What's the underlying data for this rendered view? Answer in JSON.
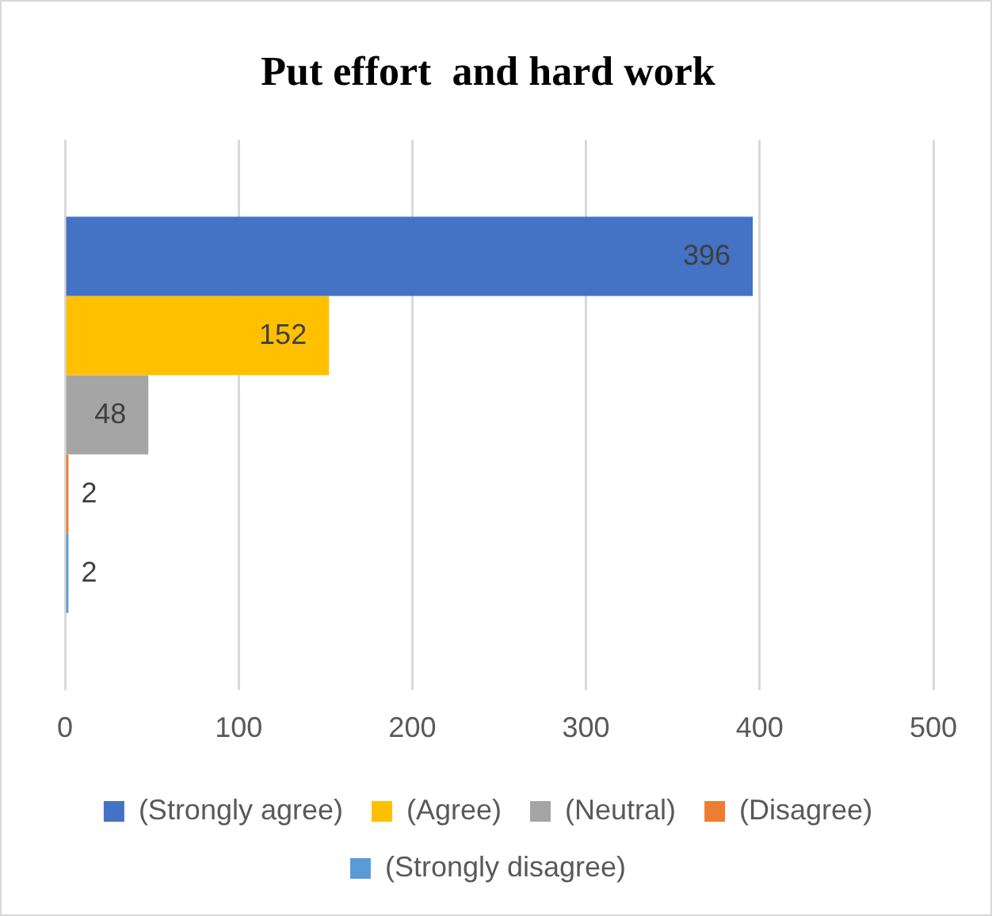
{
  "chart_data": {
    "type": "bar",
    "orientation": "horizontal",
    "title": "Put effort  and hard work",
    "categories": [
      null
    ],
    "series": [
      {
        "name": "(Strongly agree)",
        "color": "#4472c4",
        "values": [
          396
        ]
      },
      {
        "name": "(Agree)",
        "color": "#ffc000",
        "values": [
          152
        ]
      },
      {
        "name": "(Neutral)",
        "color": "#a5a5a5",
        "values": [
          48
        ]
      },
      {
        "name": "(Disagree)",
        "color": "#ed7d31",
        "values": [
          2
        ]
      },
      {
        "name": "(Strongly disagree)",
        "color": "#5b9bd5",
        "values": [
          2
        ]
      }
    ],
    "xlim": [
      0,
      500
    ],
    "xticks": [
      0,
      100,
      200,
      300,
      400,
      500
    ],
    "grid": "x",
    "legend": "bottom",
    "data_labels": true
  }
}
